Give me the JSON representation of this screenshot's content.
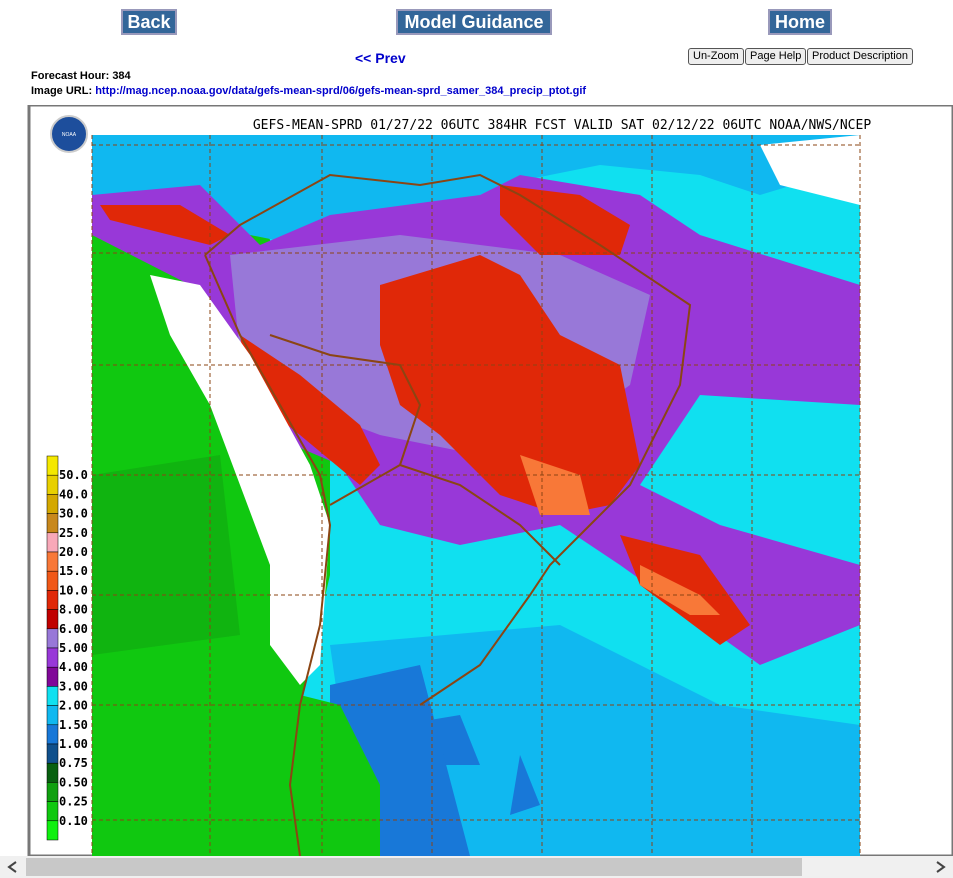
{
  "nav": {
    "back": "Back",
    "guidance": "Model Guidance",
    "home": "Home",
    "prev": "<< Prev",
    "tools": [
      "Un-Zoom",
      "Page Help",
      "Product Description"
    ]
  },
  "info": {
    "hour_label": "Forecast Hour:",
    "hour": "384",
    "url_label": "Image URL:",
    "url": "http://mag.ncep.noaa.gov/data/gefs-mean-sprd/06/gefs-mean-sprd_samer_384_precip_ptot.gif"
  },
  "map": {
    "logo": "NOAA",
    "title": "GEFS-MEAN-SPRD 01/27/22 06UTC 384HR FCST VALID SAT 02/12/22 06UTC NOAA/NWS/NCEP",
    "legend": [
      {
        "label": "50.0",
        "color": "#f4e800"
      },
      {
        "label": "40.0",
        "color": "#e8d000"
      },
      {
        "label": "30.0",
        "color": "#d4a800"
      },
      {
        "label": "25.0",
        "color": "#c8881c"
      },
      {
        "label": "20.0",
        "color": "#f8a8b8"
      },
      {
        "label": "15.0",
        "color": "#f87838"
      },
      {
        "label": "10.0",
        "color": "#f05818"
      },
      {
        "label": "8.00",
        "color": "#e02808"
      },
      {
        "label": "6.00",
        "color": "#c00000"
      },
      {
        "label": "5.00",
        "color": "#9878d8"
      },
      {
        "label": "4.00",
        "color": "#9838d8"
      },
      {
        "label": "3.00",
        "color": "#800898"
      },
      {
        "label": "2.00",
        "color": "#10e0f0"
      },
      {
        "label": "1.50",
        "color": "#10b8f0"
      },
      {
        "label": "1.00",
        "color": "#1878d8"
      },
      {
        "label": "0.75",
        "color": "#10508c"
      },
      {
        "label": "0.50",
        "color": "#086010"
      },
      {
        "label": "0.25",
        "color": "#10a010"
      },
      {
        "label": "0.10",
        "color": "#10c810"
      },
      {
        "label": null,
        "color": "#10f010"
      }
    ]
  }
}
